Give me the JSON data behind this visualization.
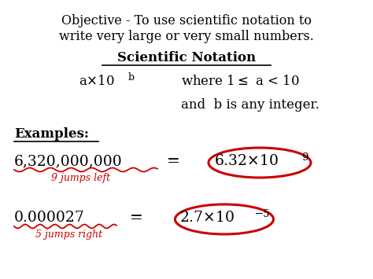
{
  "bg_color": "#ffffff",
  "text_color": "#000000",
  "red_color": "#cc0000",
  "title_line1": "Objective - To use scientific notation to",
  "title_line2": "write very large or very small numbers.",
  "section_title": "Scientific Notation",
  "examples_label": "Examples:",
  "ex1_left": "6,320,000,000",
  "ex1_exp": "9",
  "ex1_note": "9 jumps left",
  "ex2_left": "0.000027",
  "ex2_exp": "−5",
  "ex2_note": "5 jumps right",
  "figsize": [
    4.74,
    3.55
  ],
  "dpi": 100
}
